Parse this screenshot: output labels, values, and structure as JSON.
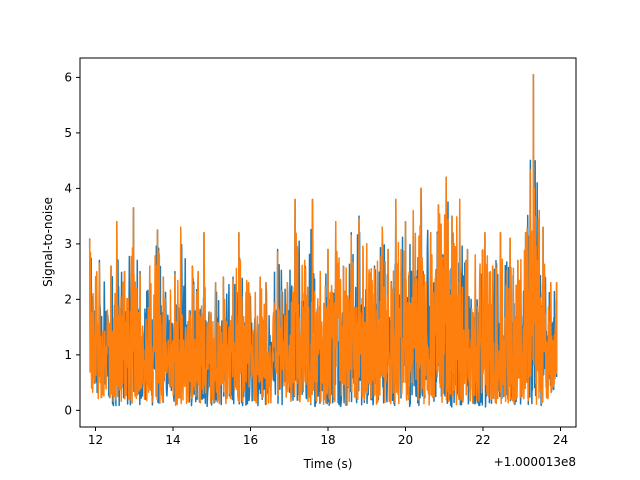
{
  "chart_data": {
    "type": "line",
    "title": "",
    "xlabel": "Time (s)",
    "ylabel": "Signal-to-noise",
    "x_offset_label": "+1.000013e8",
    "xlim": [
      11.6,
      24.4
    ],
    "ylim": [
      -0.3,
      6.35
    ],
    "x_ticks": [
      12,
      14,
      16,
      18,
      20,
      22,
      24
    ],
    "y_ticks": [
      0,
      1,
      2,
      3,
      4,
      5,
      6
    ],
    "grid": false,
    "legend": "none",
    "series": [
      {
        "color": "#1f77b4",
        "x": [
          11.85,
          12.1,
          12.4,
          12.55,
          12.75,
          12.98,
          13.15,
          13.4,
          13.6,
          13.75,
          14.05,
          14.2,
          14.5,
          14.65,
          14.8,
          15.1,
          15.3,
          15.55,
          15.7,
          15.95,
          16.25,
          16.4,
          16.7,
          16.95,
          17.15,
          17.4,
          17.6,
          17.8,
          18.0,
          18.2,
          18.4,
          18.6,
          18.8,
          19.0,
          19.2,
          19.4,
          19.55,
          19.75,
          20.0,
          20.2,
          20.4,
          20.65,
          20.85,
          21.05,
          21.2,
          21.4,
          21.6,
          21.8,
          22.05,
          22.25,
          22.45,
          22.7,
          22.9,
          23.1,
          23.3,
          23.45,
          23.55,
          23.75,
          23.9
        ],
        "upper": [
          3.1,
          2.7,
          2.6,
          3.4,
          2.5,
          3.65,
          2.5,
          2.6,
          3.25,
          2.4,
          2.5,
          3.3,
          2.6,
          2.5,
          3.2,
          2.3,
          2.4,
          2.4,
          3.2,
          2.3,
          2.4,
          2.3,
          2.9,
          2.3,
          3.8,
          2.7,
          3.8,
          2.5,
          2.9,
          3.4,
          2.6,
          3.2,
          3.5,
          3.0,
          2.6,
          3.3,
          2.9,
          3.8,
          3.4,
          3.6,
          4.0,
          3.2,
          3.7,
          4.2,
          3.5,
          3.8,
          2.9,
          2.8,
          3.2,
          2.6,
          3.2,
          3.1,
          2.7,
          3.2,
          6.05,
          3.6,
          3.3,
          2.3,
          2.3
        ],
        "lower": [
          0.2,
          0.15,
          0.1,
          0.05,
          0.12,
          0.08,
          0.1,
          0.05,
          0.08,
          0.12,
          0.05,
          0.1,
          0.08,
          0.15,
          0.04,
          0.1,
          0.06,
          0.12,
          0.07,
          0.1,
          0.05,
          0.09,
          0.12,
          0.06,
          0.08,
          0.11,
          0.05,
          0.1,
          0.07,
          0.12,
          0.04,
          0.09,
          0.06,
          0.1,
          0.08,
          0.05,
          0.12,
          0.07,
          0.09,
          0.05,
          0.1,
          0.06,
          0.11,
          0.08,
          0.05,
          0.1,
          0.07,
          0.09,
          0.04,
          0.1,
          0.06,
          0.08,
          0.12,
          0.05,
          0.09,
          0.07,
          0.1,
          0.15,
          0.6
        ]
      },
      {
        "color": "#ff7f0e",
        "x": [
          11.85,
          12.1,
          12.4,
          12.55,
          12.75,
          12.98,
          13.15,
          13.4,
          13.6,
          13.75,
          14.05,
          14.2,
          14.5,
          14.65,
          14.8,
          15.1,
          15.3,
          15.55,
          15.7,
          15.95,
          16.25,
          16.4,
          16.7,
          16.95,
          17.15,
          17.4,
          17.6,
          17.8,
          18.0,
          18.2,
          18.4,
          18.6,
          18.8,
          19.0,
          19.2,
          19.4,
          19.55,
          19.75,
          20.0,
          20.2,
          20.4,
          20.65,
          20.85,
          21.05,
          21.2,
          21.4,
          21.6,
          21.8,
          22.05,
          22.25,
          22.45,
          22.7,
          22.9,
          23.1,
          23.3,
          23.45,
          23.55,
          23.75,
          23.9
        ],
        "upper": [
          3.1,
          2.65,
          2.6,
          3.4,
          2.5,
          3.65,
          2.45,
          2.6,
          3.25,
          2.4,
          2.45,
          3.3,
          2.6,
          2.5,
          3.2,
          2.3,
          2.4,
          2.35,
          3.2,
          2.3,
          2.4,
          2.3,
          2.85,
          2.3,
          3.8,
          2.7,
          3.8,
          2.5,
          2.9,
          3.4,
          2.6,
          3.15,
          3.45,
          3.0,
          2.55,
          3.3,
          2.9,
          3.8,
          3.4,
          3.6,
          4.0,
          3.2,
          3.7,
          4.2,
          3.5,
          3.8,
          2.9,
          2.8,
          3.2,
          2.6,
          3.2,
          3.1,
          2.7,
          3.2,
          6.05,
          3.6,
          3.3,
          2.3,
          2.3
        ],
        "lower": [
          0.25,
          0.18,
          0.12,
          0.08,
          0.15,
          0.1,
          0.12,
          0.08,
          0.1,
          0.14,
          0.08,
          0.12,
          0.1,
          0.18,
          0.06,
          0.12,
          0.09,
          0.14,
          0.1,
          0.12,
          0.08,
          0.11,
          0.14,
          0.09,
          0.1,
          0.13,
          0.08,
          0.12,
          0.09,
          0.14,
          0.07,
          0.11,
          0.09,
          0.12,
          0.1,
          0.08,
          0.14,
          0.09,
          0.11,
          0.08,
          0.12,
          0.09,
          0.13,
          0.1,
          0.08,
          0.12,
          0.09,
          0.11,
          0.07,
          0.12,
          0.09,
          0.1,
          0.14,
          0.08,
          0.11,
          0.09,
          0.12,
          0.18,
          0.65
        ]
      }
    ]
  }
}
